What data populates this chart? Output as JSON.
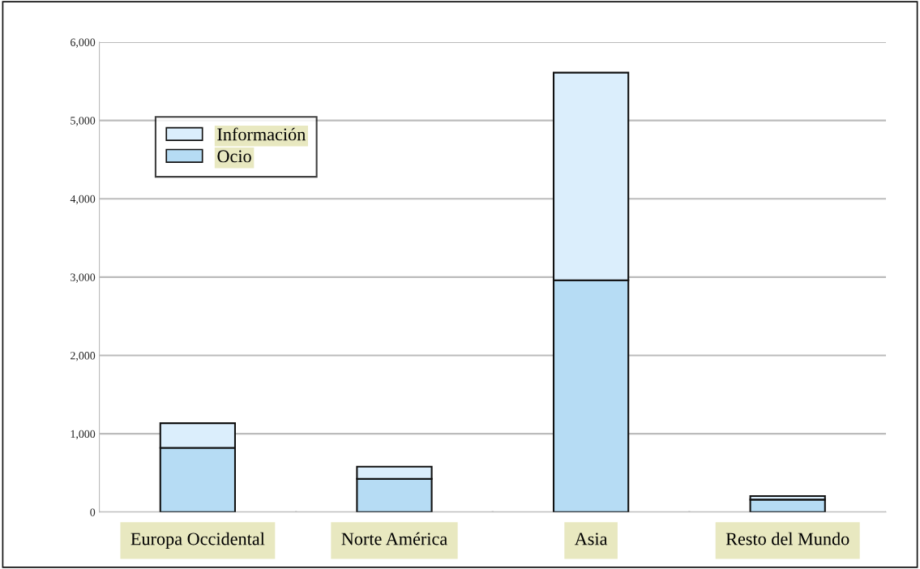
{
  "chart_data": {
    "type": "bar",
    "stacked": true,
    "categories": [
      "Europa Occidental",
      "Norte América",
      "Asia",
      "Resto del Mundo"
    ],
    "series": [
      {
        "name": "Ocio",
        "color": "#b6dcf4",
        "values": [
          820,
          425,
          2960,
          160
        ]
      },
      {
        "name": "Información",
        "color": "#dbeefc",
        "values": [
          315,
          155,
          2650,
          45
        ]
      }
    ],
    "ylim": [
      0,
      6000
    ],
    "yticks": [
      {
        "value": 0,
        "label": "0"
      },
      {
        "value": 1000,
        "label": "1,000"
      },
      {
        "value": 2000,
        "label": "2,000"
      },
      {
        "value": 3000,
        "label": "3,000"
      },
      {
        "value": 4000,
        "label": "4,000"
      },
      {
        "value": 5000,
        "label": "5,000"
      },
      {
        "value": 6000,
        "label": "6,000"
      }
    ],
    "grid": "y",
    "legend": "top left"
  }
}
